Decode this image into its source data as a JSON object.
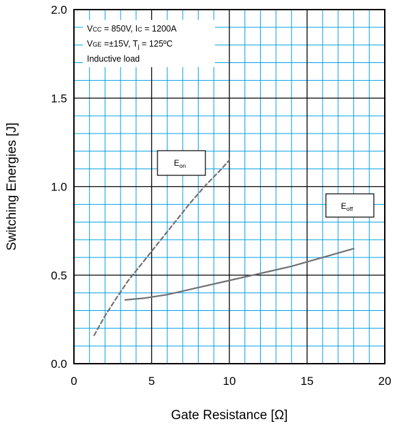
{
  "chart_data": {
    "type": "line",
    "xlabel": "Gate Resistance [Ω]",
    "ylabel": "Switching Energies [J]",
    "xlim": [
      0,
      20
    ],
    "ylim": [
      0,
      2
    ],
    "x_ticks": [
      "0",
      "5",
      "10",
      "15",
      "20"
    ],
    "y_ticks": [
      "0.0",
      "0.5",
      "1.0",
      "1.5",
      "2.0"
    ],
    "grid": true,
    "grid_color": "#00a0e6",
    "conditions": [
      "VCC = 850V, IC = 1200A",
      "VGE =±15V, Tj = 125ºC",
      "Inductive load"
    ],
    "series": [
      {
        "name": "Eon",
        "label_main": "E",
        "label_sub": "on",
        "style": "dashed",
        "color": "#707070",
        "x": [
          1.3,
          2.0,
          2.8,
          3.5,
          4.5,
          5.5,
          6.5,
          7.5,
          8.5,
          9.5,
          10.0
        ],
        "y": [
          0.16,
          0.27,
          0.38,
          0.47,
          0.58,
          0.69,
          0.8,
          0.91,
          1.01,
          1.1,
          1.15
        ]
      },
      {
        "name": "Eoff",
        "label_main": "E",
        "label_sub": "off",
        "style": "solid",
        "color": "#707070",
        "x": [
          3.3,
          4.5,
          6.0,
          8.0,
          10.0,
          12.0,
          14.0,
          16.0,
          18.0
        ],
        "y": [
          0.36,
          0.37,
          0.39,
          0.43,
          0.47,
          0.51,
          0.55,
          0.6,
          0.65
        ]
      }
    ]
  }
}
